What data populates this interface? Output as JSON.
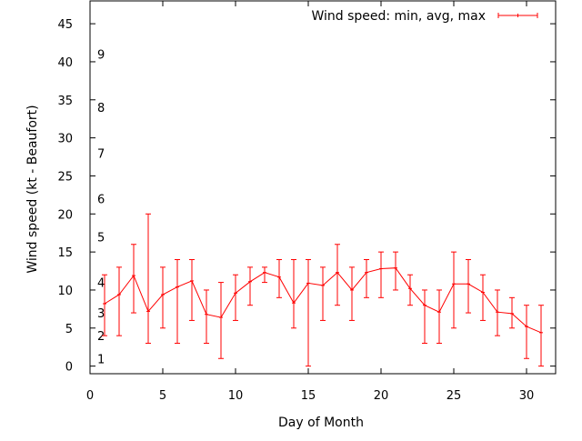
{
  "chart_data": {
    "type": "line",
    "title": "",
    "xlabel": "Day of Month",
    "ylabel": "Wind speed (kt - Beaufort)",
    "xlim": [
      0,
      32
    ],
    "ylim": [
      -1,
      48
    ],
    "x_ticks": [
      0,
      5,
      10,
      15,
      20,
      25,
      30
    ],
    "y_ticks": [
      0,
      5,
      10,
      15,
      20,
      25,
      30,
      35,
      40,
      45
    ],
    "grid": false,
    "legend_position": "top-right",
    "beaufort_labels": [
      {
        "label": "1",
        "y": 1
      },
      {
        "label": "2",
        "y": 4
      },
      {
        "label": "3",
        "y": 7
      },
      {
        "label": "4",
        "y": 11
      },
      {
        "label": "5",
        "y": 17
      },
      {
        "label": "6",
        "y": 22
      },
      {
        "label": "7",
        "y": 28
      },
      {
        "label": "8",
        "y": 34
      },
      {
        "label": "9",
        "y": 41
      }
    ],
    "series": [
      {
        "name": "Wind speed: min, avg, max",
        "color": "#ff0000",
        "x": [
          1,
          2,
          3,
          4,
          5,
          6,
          7,
          8,
          9,
          10,
          11,
          12,
          13,
          14,
          15,
          16,
          17,
          18,
          19,
          20,
          21,
          22,
          23,
          24,
          25,
          26,
          27,
          28,
          29,
          30,
          31
        ],
        "avg": [
          8.2,
          9.4,
          11.9,
          7.2,
          9.4,
          10.4,
          11.2,
          6.8,
          6.4,
          9.6,
          11.1,
          12.3,
          11.7,
          8.3,
          10.9,
          10.6,
          12.3,
          10.0,
          12.3,
          12.8,
          12.9,
          10.2,
          8.0,
          7.1,
          10.8,
          10.8,
          9.7,
          7.1,
          6.9,
          5.2,
          4.4
        ],
        "min": [
          4,
          4,
          7,
          3,
          5,
          3,
          6,
          3,
          1,
          6,
          8,
          11,
          9,
          5,
          0,
          6,
          8,
          6,
          9,
          9,
          10,
          8,
          3,
          3,
          5,
          7,
          6,
          4,
          5,
          1,
          0
        ],
        "max": [
          12,
          13,
          16,
          20,
          13,
          14,
          14,
          10,
          11,
          12,
          13,
          13,
          14,
          14,
          14,
          13,
          16,
          13,
          14,
          15,
          15,
          12,
          10,
          10,
          15,
          14,
          12,
          10,
          9,
          8,
          8
        ]
      }
    ]
  }
}
